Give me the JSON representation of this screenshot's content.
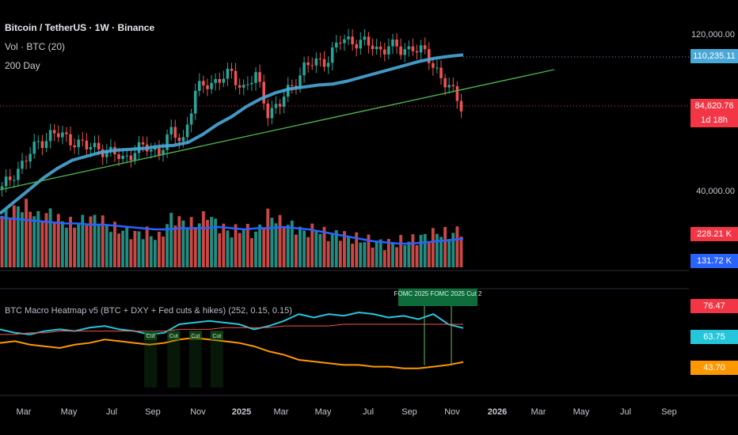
{
  "header": {
    "symbol": "Bitcoin / TetherUS · 1W · Binance",
    "volume_label": "Vol · BTC (20)",
    "ma_label": "200 Day"
  },
  "indicator": {
    "title": "BTC Macro Heatmap v5 (BTC + DXY + Fed cuts & hikes) (252, 0.15, 0.15)"
  },
  "price_axis": {
    "top": "120,000.00",
    "bottom": "40,000.00"
  },
  "tags": {
    "ma": {
      "text": "110,235.11",
      "color": "#4aa8d8"
    },
    "price": {
      "text": "84,620.76",
      "color": "#f23645"
    },
    "countdown": {
      "text": "1d 18h",
      "color": "#f23645"
    },
    "vol1": {
      "text": "228.21 K",
      "color": "#f23645"
    },
    "vol2": {
      "text": "131.72 K",
      "color": "#2962ff"
    },
    "ind1": {
      "text": "76.47",
      "color": "#f23645"
    },
    "ind2": {
      "text": "63.75",
      "color": "#26c6da"
    },
    "ind3": {
      "text": "43.70",
      "color": "#ff9800"
    }
  },
  "chart_data": {
    "type": "candlestick",
    "x_labels": [
      "Mar",
      "May",
      "Jul",
      "Sep",
      "Nov",
      "2025",
      "Mar",
      "May",
      "Jul",
      "Sep",
      "Nov",
      "2026",
      "Mar",
      "May",
      "Jul",
      "Sep"
    ],
    "close_path": [
      42000,
      51000,
      57000,
      66000,
      70000,
      69000,
      67000,
      63000,
      64000,
      60000,
      58000,
      62000,
      63000,
      62000,
      70000,
      68000,
      91000,
      96000,
      98000,
      100000,
      94000,
      99000,
      82000,
      85000,
      95000,
      104000,
      106000,
      109000,
      117000,
      118000,
      116000,
      113000,
      115000,
      112000,
      115000,
      110000,
      103000,
      93000,
      84620
    ],
    "ma_path": [
      30000,
      36000,
      42000,
      48000,
      53000,
      57000,
      59000,
      61000,
      62000,
      62500,
      63000,
      64000,
      64500,
      66000,
      70000,
      75000,
      79000,
      84000,
      88000,
      91000,
      93000,
      94000,
      95000,
      95500,
      97000,
      99000,
      101000,
      103000,
      105000,
      107000,
      108500,
      109500,
      110235
    ],
    "volume": [
      62,
      70,
      75,
      60,
      66,
      55,
      52,
      58,
      60,
      48,
      45,
      40,
      42,
      35,
      60,
      55,
      52,
      64,
      49,
      42,
      48,
      40,
      64,
      55,
      50,
      42,
      47,
      38,
      40,
      35,
      33,
      30,
      28,
      31,
      33,
      37,
      42,
      40,
      45
    ],
    "volume_ma": [
      42,
      41,
      40,
      39,
      38,
      37,
      37,
      36,
      36,
      35,
      34,
      33,
      32,
      32,
      33,
      33,
      33,
      34,
      33,
      32,
      33,
      33,
      34,
      33,
      32,
      30,
      28,
      26,
      24,
      22,
      21,
      20,
      20,
      21,
      22,
      23,
      24
    ],
    "indicator_series": [
      {
        "name": "",
        "color": "#26c6da",
        "values": [
          63,
          61,
          60,
          62,
          63,
          62,
          64,
          65,
          63,
          62,
          60,
          61,
          66,
          67,
          68,
          67,
          66,
          63,
          65,
          68,
          72,
          70,
          72,
          71,
          73,
          72,
          70,
          71,
          69,
          72,
          66,
          63.75
        ]
      },
      {
        "name": "",
        "color": "#ff9800",
        "values": [
          55,
          56,
          54,
          53,
          52,
          54,
          55,
          57,
          56,
          55,
          54,
          55,
          57,
          58,
          57,
          56,
          55,
          53,
          50,
          48,
          45,
          44,
          43,
          42,
          42,
          41,
          41,
          40,
          40,
          41,
          42,
          43.7
        ]
      },
      {
        "name": "",
        "color": "#ef5350",
        "values": [
          60,
          60,
          61,
          61,
          62,
          62,
          62,
          62,
          62,
          62,
          62,
          62,
          63,
          63,
          63,
          64,
          64,
          64,
          64,
          65,
          65,
          65,
          65,
          66,
          66,
          66,
          66,
          66,
          66,
          66,
          66,
          66
        ]
      }
    ],
    "events": [
      {
        "label": "Cut",
        "x_frac": 0.325
      },
      {
        "label": "Cut",
        "x_frac": 0.375
      },
      {
        "label": "Cut",
        "x_frac": 0.422
      },
      {
        "label": "Cut",
        "x_frac": 0.468
      }
    ],
    "fomc_labels": [
      "FOMC 2025",
      "FOMC 2025 Cut 2"
    ]
  }
}
